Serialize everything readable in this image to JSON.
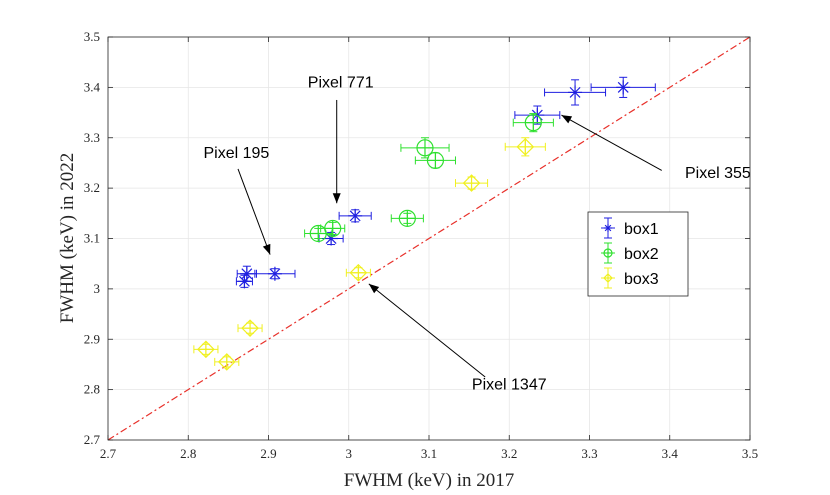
{
  "chart_data": {
    "type": "scatter",
    "xlabel": "FWHM (keV) in 2017",
    "ylabel": "FWHM (keV)  in 2022",
    "xlim": [
      2.7,
      3.5
    ],
    "ylim": [
      2.7,
      3.5
    ],
    "x_ticks": [
      "2.7",
      "2.8",
      "2.9",
      "3",
      "3.1",
      "3.2",
      "3.3",
      "3.4",
      "3.5"
    ],
    "y_ticks": [
      "2.7",
      "2.8",
      "2.9",
      "3",
      "3.1",
      "3.2",
      "3.3",
      "3.4",
      "3.5"
    ],
    "grid": true,
    "legend_position": "right-center",
    "reference_line": {
      "style": "dash-dot",
      "color": "#e8302a",
      "from": [
        2.7,
        2.7
      ],
      "to": [
        3.5,
        3.5
      ]
    },
    "series": [
      {
        "name": "box1",
        "marker": "asterisk",
        "color": "#1f1fe0",
        "points": [
          {
            "x": 2.873,
            "y": 3.03,
            "xerr": 0.012,
            "yerr": 0.015
          },
          {
            "x": 2.87,
            "y": 3.015,
            "xerr": 0.01,
            "yerr": 0.012
          },
          {
            "x": 2.908,
            "y": 3.03,
            "xerr": 0.025,
            "yerr": 0.01
          },
          {
            "x": 2.978,
            "y": 3.1,
            "xerr": 0.015,
            "yerr": 0.012
          },
          {
            "x": 3.008,
            "y": 3.145,
            "xerr": 0.02,
            "yerr": 0.012
          },
          {
            "x": 3.235,
            "y": 3.345,
            "xerr": 0.028,
            "yerr": 0.018
          },
          {
            "x": 3.282,
            "y": 3.39,
            "xerr": 0.038,
            "yerr": 0.025
          },
          {
            "x": 3.342,
            "y": 3.4,
            "xerr": 0.04,
            "yerr": 0.02
          }
        ]
      },
      {
        "name": "box2",
        "marker": "circle-plus",
        "color": "#2ee02e",
        "points": [
          {
            "x": 2.962,
            "y": 3.11,
            "xerr": 0.017,
            "yerr": 0.01
          },
          {
            "x": 2.98,
            "y": 3.12,
            "xerr": 0.015,
            "yerr": 0.012
          },
          {
            "x": 3.073,
            "y": 3.14,
            "xerr": 0.02,
            "yerr": 0.01
          },
          {
            "x": 3.095,
            "y": 3.28,
            "xerr": 0.03,
            "yerr": 0.02
          },
          {
            "x": 3.108,
            "y": 3.255,
            "xerr": 0.025,
            "yerr": 0.015
          },
          {
            "x": 3.23,
            "y": 3.33,
            "xerr": 0.025,
            "yerr": 0.018
          }
        ]
      },
      {
        "name": "box3",
        "marker": "diamond-plus",
        "color": "#f0f020",
        "points": [
          {
            "x": 2.822,
            "y": 2.88,
            "xerr": 0.015,
            "yerr": 0.01
          },
          {
            "x": 2.848,
            "y": 2.855,
            "xerr": 0.015,
            "yerr": 0.01
          },
          {
            "x": 2.877,
            "y": 2.922,
            "xerr": 0.015,
            "yerr": 0.01
          },
          {
            "x": 3.012,
            "y": 3.032,
            "xerr": 0.015,
            "yerr": 0.01
          },
          {
            "x": 3.153,
            "y": 3.21,
            "xerr": 0.02,
            "yerr": 0.012
          },
          {
            "x": 3.22,
            "y": 3.282,
            "xerr": 0.025,
            "yerr": 0.018
          }
        ]
      }
    ],
    "annotations": [
      {
        "text": "Pixel 195",
        "text_x": 2.86,
        "text_y": 3.26,
        "arrow_from": [
          2.862,
          3.238
        ],
        "arrow_to": [
          2.902,
          3.068
        ]
      },
      {
        "text": "Pixel 771",
        "text_x": 2.99,
        "text_y": 3.4,
        "arrow_from": [
          2.985,
          3.375
        ],
        "arrow_to": [
          2.985,
          3.17
        ]
      },
      {
        "text": "Pixel 355",
        "text_x": 3.46,
        "text_y": 3.22,
        "arrow_from": [
          3.39,
          3.235
        ],
        "arrow_to": [
          3.265,
          3.345
        ]
      },
      {
        "text": "Pixel 1347",
        "text_x": 3.2,
        "text_y": 2.8,
        "arrow_from": [
          3.17,
          2.825
        ],
        "arrow_to": [
          3.025,
          3.01
        ]
      }
    ]
  }
}
